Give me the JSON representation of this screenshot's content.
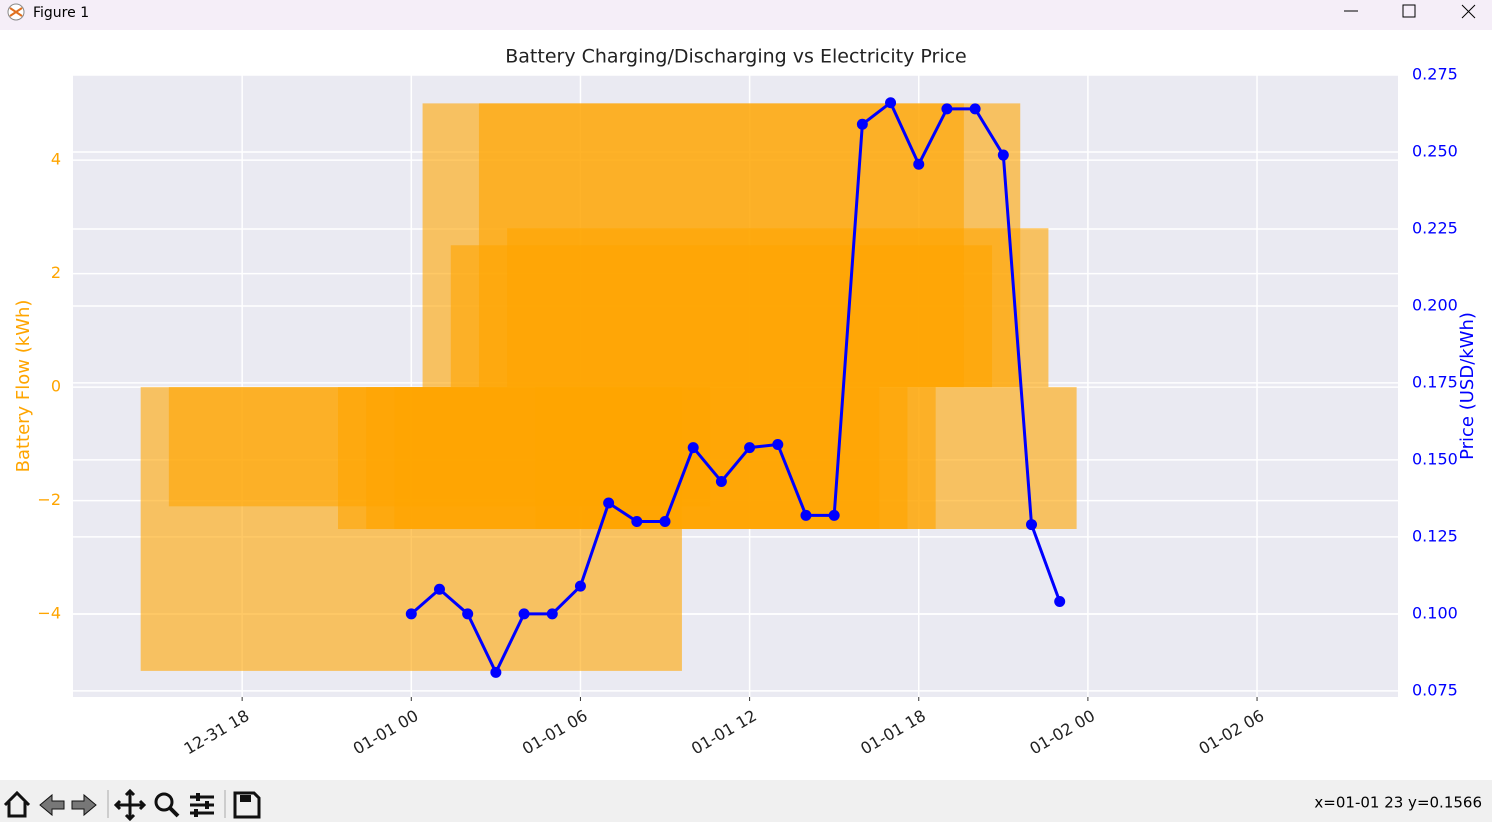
{
  "window": {
    "title": "Figure 1",
    "status": "x=01-01 23 y=0.1566"
  },
  "chart_data": {
    "type": "bar",
    "title": "Battery Charging/Discharging vs Electricity Price",
    "ylabel": "Battery Flow (kWh)",
    "y2label": "Price (USD/kWh)",
    "x": [
      "01-01 00",
      "01-01 01",
      "01-01 02",
      "01-01 03",
      "01-01 04",
      "01-01 05",
      "01-01 06",
      "01-01 07",
      "01-01 08",
      "01-01 09",
      "01-01 10",
      "01-01 11",
      "01-01 12",
      "01-01 13",
      "01-01 14",
      "01-01 15",
      "01-01 16",
      "01-01 17",
      "01-01 18",
      "01-01 19",
      "01-01 20",
      "01-01 21",
      "01-01 22",
      "01-01 23"
    ],
    "series": [
      {
        "type": "bar",
        "color": "orange",
        "values": [
          -5,
          -2.1,
          0,
          0,
          0,
          0,
          0,
          -2.5,
          -2.5,
          -2.5,
          5,
          2.5,
          5,
          2.8,
          -2.5,
          0,
          0,
          0,
          0,
          0,
          0,
          0,
          0,
          0
        ]
      },
      {
        "type": "line",
        "color": "blue",
        "axis": "y2",
        "values": [
          0.1,
          0.108,
          0.1,
          0.081,
          0.1,
          0.1,
          0.109,
          0.136,
          0.13,
          0.13,
          0.154,
          0.143,
          0.154,
          0.155,
          0.132,
          0.132,
          0.259,
          0.266,
          0.246,
          0.264,
          0.264,
          0.249,
          0.129,
          0.104
        ]
      }
    ],
    "xlim": [
      "12-31 12",
      "01-02 11"
    ],
    "xticks": [
      "12-31 18",
      "01-01 00",
      "01-01 06",
      "01-01 12",
      "01-01 18",
      "01-02 00",
      "01-02 06"
    ],
    "ylim": [
      -5.46,
      5.5
    ],
    "yticks": [
      {
        "value": -4,
        "label": "−4"
      },
      {
        "value": -2,
        "label": "−2"
      },
      0,
      2,
      4
    ],
    "y2lim": [
      0.073,
      0.275
    ],
    "y2ticks": [
      0.075,
      {
        "value": 0.1,
        "label": "0.100"
      },
      0.125,
      {
        "value": 0.15,
        "label": "0.150"
      },
      0.175,
      {
        "value": 0.2,
        "label": "0.200"
      },
      0.225,
      {
        "value": 0.25,
        "label": "0.250"
      },
      0.275
    ],
    "grid": true
  }
}
